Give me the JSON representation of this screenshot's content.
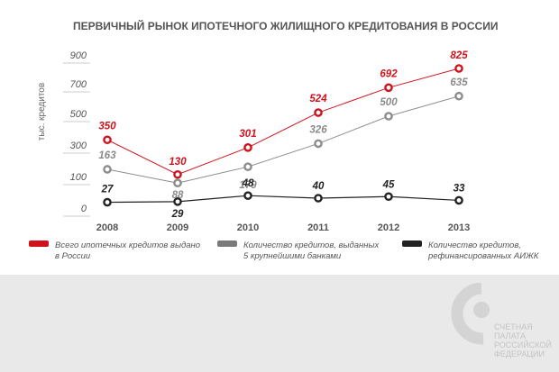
{
  "chart_data": {
    "type": "line",
    "title": "ПЕРВИЧНЫЙ РЫНОК ИПОТЕЧНОГО ЖИЛИЩНОГО КРЕДИТОВАНИЯ В РОССИИ",
    "ylabel": "тыс. кредитов",
    "xlabel": "",
    "categories": [
      "2008",
      "2009",
      "2010",
      "2011",
      "2012",
      "2013"
    ],
    "yticks": [
      "0",
      "100",
      "300",
      "500",
      "700",
      "900"
    ],
    "series": [
      {
        "name": "Всего ипотечных кредитов выдано в России",
        "name_lines": [
          "Всего ипотечных кредитов выдано",
          "в России"
        ],
        "color": "#d0121b",
        "values": [
          350,
          130,
          301,
          524,
          692,
          825
        ]
      },
      {
        "name": "Количество кредитов, выданных 5 крупнейшими банками",
        "name_lines": [
          "Количество кредитов, выданных",
          "5 крупнейшими банками"
        ],
        "color": "#8c8c8c",
        "values": [
          163,
          88,
          179,
          326,
          500,
          635
        ]
      },
      {
        "name": "Количество кредитов, рефинансированных АИЖК",
        "name_lines": [
          "Количество кредитов,",
          "рефинансированных АИЖК"
        ],
        "color": "#222222",
        "values": [
          27,
          29,
          48,
          40,
          45,
          33
        ]
      }
    ],
    "legend_position": "bottom",
    "grid": false
  },
  "logo": {
    "lines": [
      "СЧЕТНАЯ",
      "ПАЛАТА",
      "РОССИЙСКОЙ",
      "ФЕДЕРАЦИИ"
    ],
    "color": "#c4c4c4"
  }
}
